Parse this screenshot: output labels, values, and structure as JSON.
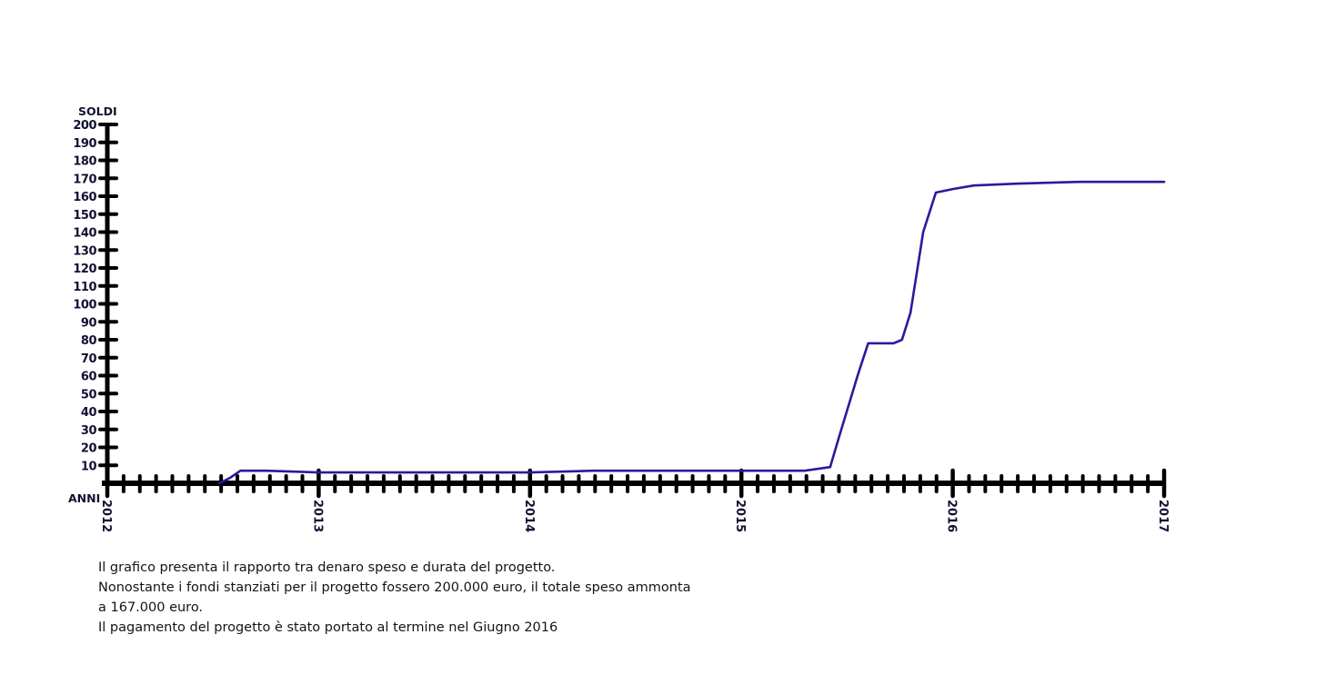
{
  "chart_data": {
    "type": "line",
    "ylabel": "SOLDI",
    "xlabel": "ANNI",
    "ylim": [
      0,
      200
    ],
    "xlim": [
      2012,
      2017
    ],
    "y_ticks": [
      "10",
      "20",
      "30",
      "40",
      "50",
      "60",
      "70",
      "80",
      "90",
      "100",
      "110",
      "120",
      "130",
      "140",
      "150",
      "160",
      "170",
      "180",
      "190",
      "200"
    ],
    "x_ticks": [
      "2012",
      "2013",
      "2014",
      "2015",
      "2016",
      "2017"
    ],
    "grid": false,
    "series": [
      {
        "color": "#2a1a9e",
        "x": [
          2012.53,
          2012.58,
          2012.63,
          2012.75,
          2013.0,
          2013.5,
          2014.0,
          2014.3,
          2014.5,
          2015.0,
          2015.3,
          2015.42,
          2015.46,
          2015.55,
          2015.6,
          2015.65,
          2015.72,
          2015.76,
          2015.8,
          2015.86,
          2015.92,
          2016.0,
          2016.1,
          2016.3,
          2016.6,
          2016.8,
          2017.0
        ],
        "y": [
          0,
          3,
          7,
          7,
          6,
          6,
          6,
          7,
          7,
          7,
          7,
          9,
          25,
          60,
          78,
          78,
          78,
          80,
          95,
          140,
          162,
          164,
          166,
          167,
          168,
          168,
          168
        ]
      }
    ]
  },
  "caption": {
    "line1": "Il grafico presenta il rapporto tra denaro speso e durata del progetto.",
    "line2": "Nonostante i fondi stanziati per il progetto fossero 200.000 euro, il totale speso ammonta",
    "line3": "a 167.000 euro.",
    "line4": "Il pagamento del progetto è stato portato al termine nel Giugno 2016"
  }
}
